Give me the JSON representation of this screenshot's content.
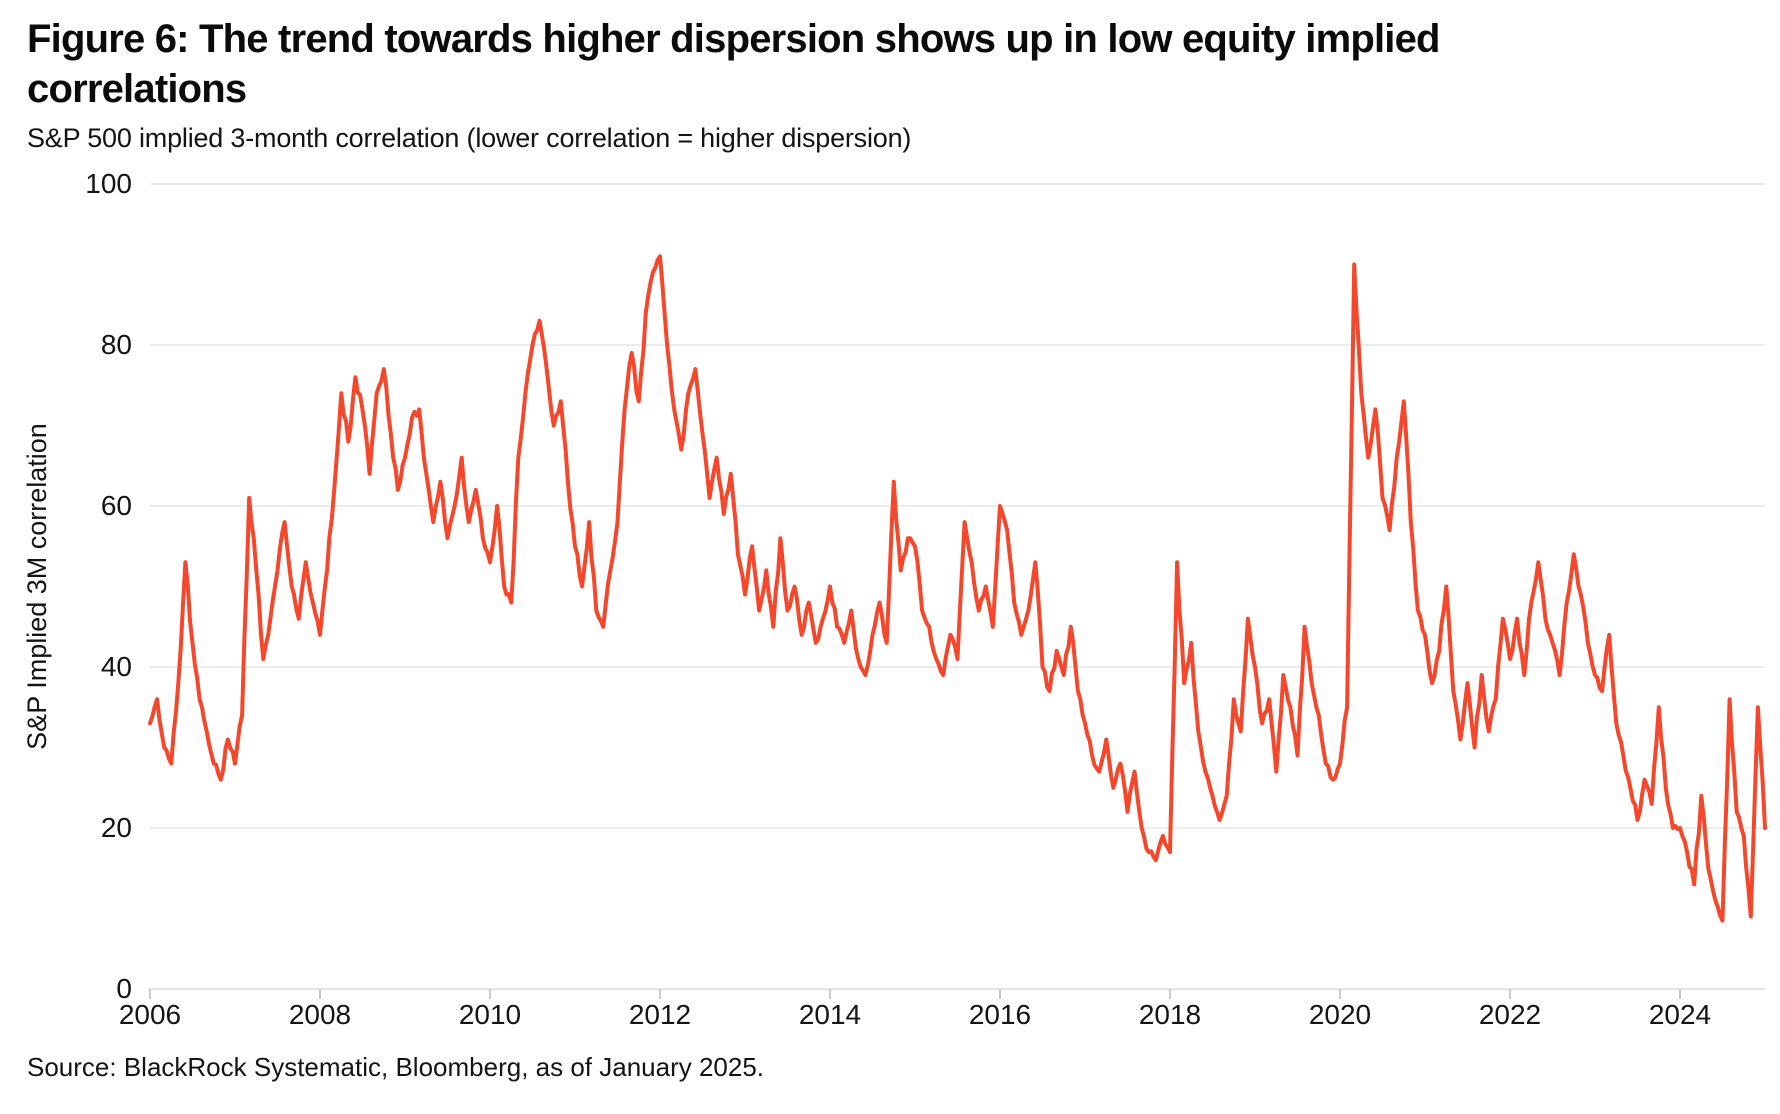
{
  "chart_data": {
    "type": "line",
    "title": "Figure 6: The trend towards higher dispersion shows up in low equity implied\ncorrelations",
    "subtitle": "S&P 500 implied 3-month correlation (lower correlation = higher dispersion)",
    "ylabel": "S&P Implied 3M correlation",
    "xlabel": "",
    "source": "Source: BlackRock Systematic, Bloomberg, as of January 2025.",
    "grid": "horizontal-only",
    "legend": "none",
    "ylim": [
      0,
      100
    ],
    "yticks": [
      0,
      20,
      40,
      60,
      80,
      100
    ],
    "xticks": [
      2006,
      2008,
      2010,
      2012,
      2014,
      2016,
      2018,
      2020,
      2022,
      2024
    ],
    "x_start_year": 2006,
    "x_resolution": "monthly",
    "x_end_year": 2025.0,
    "series": [
      {
        "name": "S&P 500 implied 3M correlation",
        "color": "#f4472b",
        "values": [
          33,
          36,
          30,
          28,
          38,
          53,
          43,
          36,
          32,
          28,
          26,
          31,
          28,
          34,
          61,
          52,
          41,
          46,
          52,
          58,
          50,
          46,
          53,
          48,
          44,
          52,
          62,
          74,
          68,
          76,
          72,
          64,
          74,
          77,
          69,
          62,
          66,
          71,
          72,
          64,
          58,
          63,
          56,
          60,
          66,
          58,
          62,
          56,
          53,
          60,
          50,
          48,
          66,
          74,
          80,
          83,
          77,
          70,
          73,
          63,
          55,
          50,
          58,
          47,
          45,
          52,
          58,
          72,
          79,
          73,
          84,
          89,
          91,
          80,
          72,
          67,
          74,
          77,
          69,
          61,
          66,
          59,
          64,
          54,
          49,
          55,
          47,
          52,
          45,
          56,
          47,
          50,
          44,
          48,
          43,
          46,
          50,
          45,
          43,
          47,
          41,
          39,
          44,
          48,
          43,
          63,
          52,
          56,
          55,
          47,
          45,
          41,
          39,
          44,
          41,
          58,
          53,
          47,
          50,
          45,
          60,
          57,
          48,
          44,
          47,
          53,
          40,
          37,
          42,
          39,
          45,
          37,
          33,
          29,
          27,
          31,
          25,
          28,
          22,
          27,
          20,
          17,
          16,
          19,
          17,
          53,
          38,
          43,
          32,
          27,
          24,
          21,
          24,
          36,
          32,
          46,
          40,
          33,
          36,
          27,
          39,
          35,
          29,
          45,
          38,
          34,
          28,
          26,
          28,
          35,
          90,
          74,
          66,
          72,
          61,
          57,
          66,
          73,
          58,
          47,
          44,
          38,
          42,
          50,
          37,
          31,
          38,
          30,
          39,
          32,
          36,
          46,
          41,
          46,
          39,
          48,
          53,
          46,
          43,
          39,
          48,
          54,
          49,
          43,
          39,
          37,
          44,
          33,
          29,
          25,
          21,
          26,
          23,
          35,
          25,
          20,
          20,
          17,
          13,
          24,
          15,
          11,
          8.5,
          36,
          22,
          19,
          9,
          35,
          20
        ]
      }
    ],
    "colors": {
      "line": "#f4472b",
      "gridline": "#ececec",
      "axis_line": "#e7e7e7",
      "tick_mark": "#cccccc",
      "text": "#141414"
    }
  }
}
